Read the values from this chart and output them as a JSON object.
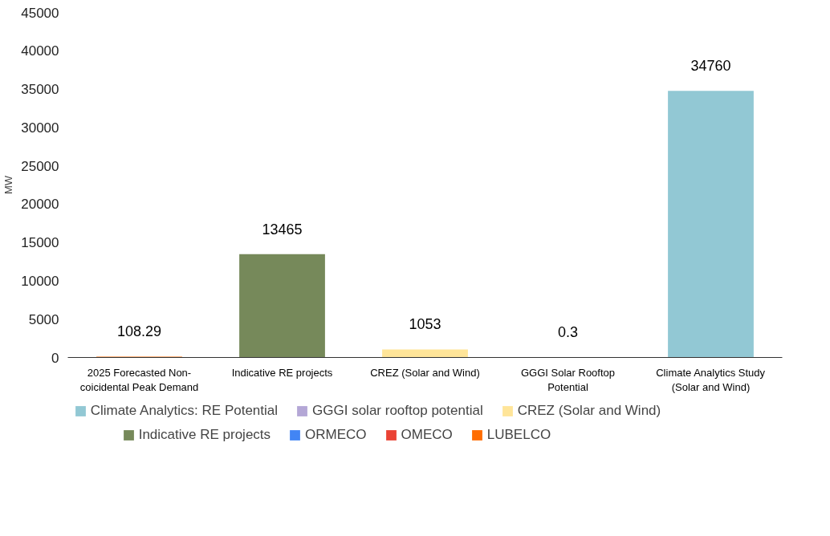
{
  "chart_data": {
    "type": "bar",
    "stacked": true,
    "ylabel": "MW",
    "categories": [
      "2025 Forecasted Non-coicidental Peak Demand",
      "Indicative RE projects",
      "CREZ (Solar and Wind)",
      "GGGI Solar Rooftop Potential",
      "Climate Analytics Study (Solar and Wind)"
    ],
    "series": [
      {
        "name": "LUBELCO",
        "color": "#ff6d01",
        "values": [
          108.29,
          null,
          null,
          null,
          null
        ]
      },
      {
        "name": "OMECO",
        "color": "#ea4335",
        "values": [
          null,
          null,
          null,
          null,
          null
        ]
      },
      {
        "name": "ORMECO",
        "color": "#4285f4",
        "values": [
          null,
          null,
          null,
          null,
          null
        ]
      },
      {
        "name": "Indicative RE projects",
        "color": "#76895a",
        "values": [
          null,
          13465,
          null,
          null,
          null
        ]
      },
      {
        "name": "CREZ (Solar and Wind)",
        "color": "#ffe599",
        "values": [
          null,
          null,
          1053,
          null,
          null
        ]
      },
      {
        "name": "GGGI solar rooftop potential",
        "color": "#b4a7d6",
        "values": [
          null,
          null,
          null,
          0.3,
          null
        ]
      },
      {
        "name": "Climate Analytics: RE Potential",
        "color": "#92c8d4",
        "values": [
          null,
          null,
          null,
          null,
          34760
        ]
      }
    ],
    "totals": [
      "108.29",
      "13465",
      "1053",
      "0.3",
      "34760"
    ],
    "ylim": [
      0,
      45000
    ],
    "yticks": [
      0,
      5000,
      10000,
      15000,
      20000,
      25000,
      30000,
      35000,
      40000,
      45000
    ],
    "grid": false,
    "legend": "bottom"
  }
}
